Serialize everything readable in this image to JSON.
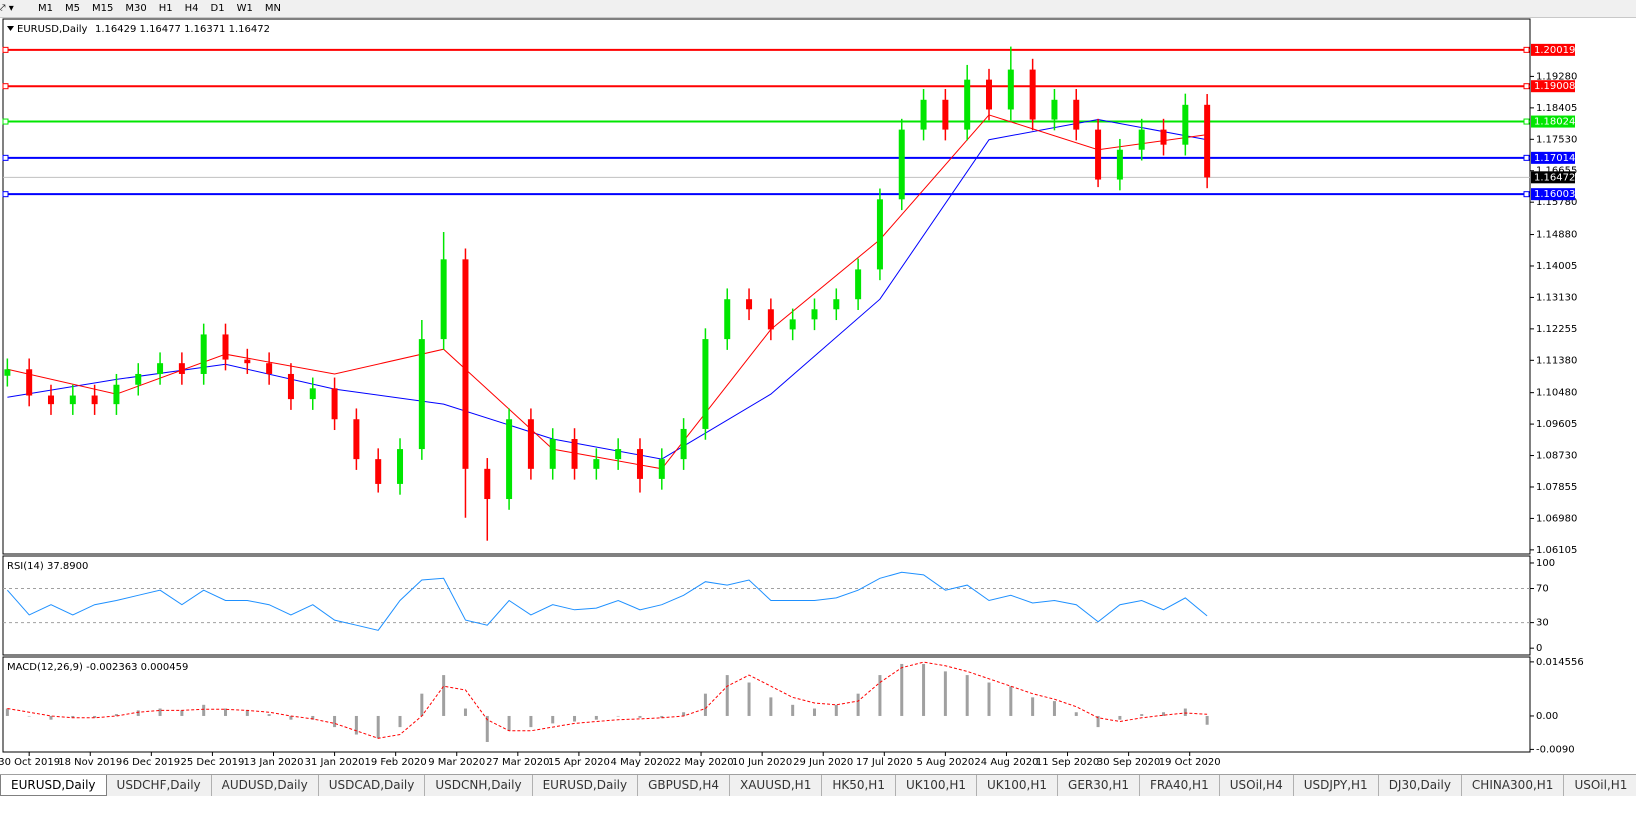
{
  "toolbar": {
    "timeframes": [
      "M1",
      "M5",
      "M15",
      "M30",
      "H1",
      "H4",
      "D1",
      "W1",
      "MN"
    ]
  },
  "chart_data": [
    {
      "type": "candlestick",
      "title": "EURUSD,Daily",
      "subtitle": "1.16429 1.16477 1.16371 1.16472",
      "x": [
        0,
        5,
        10,
        15,
        20,
        25,
        30,
        35,
        40,
        45,
        50,
        55,
        60,
        65,
        70,
        75,
        80,
        85,
        90,
        95,
        100,
        105,
        110,
        115,
        120,
        125,
        130,
        135,
        140,
        145,
        150,
        155,
        160,
        165,
        170,
        175,
        180,
        185,
        190,
        195,
        200,
        205,
        210,
        215,
        220,
        225,
        230,
        235,
        240,
        245,
        250,
        255,
        260,
        265,
        270,
        275
      ],
      "open": [
        1.1095,
        1.1113,
        1.104,
        1.1016,
        1.104,
        1.1016,
        1.107,
        1.11,
        1.113,
        1.11,
        1.121,
        1.114,
        1.113,
        1.11,
        1.103,
        1.106,
        1.0974,
        1.0863,
        1.0794,
        1.0891,
        1.1197,
        1.1419,
        1.0836,
        1.0752,
        1.0974,
        1.0836,
        1.0919,
        1.0836,
        1.0863,
        1.0891,
        1.0808,
        1.0863,
        1.0947,
        1.1197,
        1.1308,
        1.128,
        1.1224,
        1.1252,
        1.128,
        1.1308,
        1.1391,
        1.1586,
        1.178,
        1.1863,
        1.178,
        1.1919,
        1.1836,
        1.1947,
        1.1808,
        1.1863,
        1.178,
        1.1641,
        1.1724,
        1.178,
        1.1738,
        1.1849
      ],
      "high": [
        1.1143,
        1.1143,
        1.107,
        1.107,
        1.107,
        1.11,
        1.113,
        1.116,
        1.116,
        1.124,
        1.124,
        1.117,
        1.116,
        1.113,
        1.109,
        1.109,
        1.1004,
        1.0893,
        1.0921,
        1.125,
        1.1495,
        1.1449,
        1.0866,
        1.1004,
        1.1004,
        1.0949,
        1.0949,
        1.0893,
        1.0921,
        1.0921,
        1.0893,
        1.0977,
        1.1227,
        1.1338,
        1.1338,
        1.131,
        1.1282,
        1.131,
        1.1338,
        1.1421,
        1.1616,
        1.181,
        1.1893,
        1.1893,
        1.196,
        1.1949,
        1.2011,
        1.1977,
        1.1893,
        1.1893,
        1.181,
        1.1754,
        1.181,
        1.181,
        1.188,
        1.1879
      ],
      "low": [
        1.1065,
        1.101,
        1.0986,
        1.0986,
        1.0986,
        1.0986,
        1.104,
        1.107,
        1.107,
        1.107,
        1.111,
        1.11,
        1.107,
        1.1,
        1.1,
        1.0944,
        1.0833,
        1.077,
        1.0764,
        1.0861,
        1.1167,
        1.07,
        1.0636,
        1.0722,
        1.0806,
        1.0806,
        1.0806,
        1.0806,
        1.0833,
        1.077,
        1.0778,
        1.0833,
        1.0917,
        1.1167,
        1.125,
        1.1194,
        1.1194,
        1.1222,
        1.125,
        1.1278,
        1.1361,
        1.1556,
        1.175,
        1.175,
        1.175,
        1.1806,
        1.1806,
        1.1778,
        1.1778,
        1.175,
        1.162,
        1.1611,
        1.1694,
        1.1708,
        1.1708,
        1.1617
      ],
      "close": [
        1.1113,
        1.104,
        1.1016,
        1.104,
        1.1016,
        1.107,
        1.11,
        1.113,
        1.11,
        1.121,
        1.114,
        1.113,
        1.11,
        1.103,
        1.106,
        1.0974,
        1.0863,
        1.0794,
        1.0891,
        1.1197,
        1.1419,
        1.0836,
        1.0752,
        1.0974,
        1.0836,
        1.0919,
        1.0836,
        1.0863,
        1.0891,
        1.0808,
        1.0863,
        1.0947,
        1.1197,
        1.1308,
        1.128,
        1.1224,
        1.1252,
        1.128,
        1.1308,
        1.1391,
        1.1586,
        1.178,
        1.1863,
        1.178,
        1.1919,
        1.1836,
        1.1947,
        1.1808,
        1.1863,
        1.178,
        1.1641,
        1.1724,
        1.178,
        1.1738,
        1.1849,
        1.1647
      ],
      "up_color": "#00e600",
      "down_color": "#ff0000",
      "series": [
        {
          "color": "#0000ff",
          "x": [
            0,
            25,
            50,
            75,
            100,
            125,
            150,
            175,
            200,
            225,
            250,
            275
          ],
          "values": [
            1.1035,
            1.1085,
            1.1127,
            1.1058,
            1.1016,
            1.0919,
            1.0863,
            1.1044,
            1.1308,
            1.1752,
            1.1808,
            1.1752
          ]
        },
        {
          "color": "#ff0000",
          "x": [
            0,
            25,
            50,
            75,
            100,
            125,
            150,
            175,
            200,
            225,
            250,
            275
          ],
          "values": [
            1.1113,
            1.1044,
            1.1155,
            1.11,
            1.1169,
            1.0891,
            1.0836,
            1.1224,
            1.1474,
            1.1821,
            1.1724,
            1.1766
          ]
        }
      ],
      "levels": [
        {
          "value": 1.20019,
          "color": "#ff0000"
        },
        {
          "value": 1.19008,
          "color": "#ff0000"
        },
        {
          "value": 1.18024,
          "color": "#00e600"
        },
        {
          "value": 1.17014,
          "color": "#0000ff"
        },
        {
          "value": 1.16003,
          "color": "#0000ff"
        }
      ],
      "last_price": 1.16472,
      "xlim": [
        -1,
        349
      ],
      "ylim": [
        1.0599,
        1.2085
      ],
      "xticks": [
        {
          "value": 5,
          "label": "30 Oct 2019"
        },
        {
          "value": 19,
          "label": "18 Nov 2019"
        },
        {
          "value": 33,
          "label": "6 Dec 2019"
        },
        {
          "value": 47,
          "label": "25 Dec 2019"
        },
        {
          "value": 61,
          "label": "13 Jan 2020"
        },
        {
          "value": 75,
          "label": "31 Jan 2020"
        },
        {
          "value": 89,
          "label": "19 Feb 2020"
        },
        {
          "value": 103,
          "label": "9 Mar 2020"
        },
        {
          "value": 117,
          "label": "27 Mar 2020"
        },
        {
          "value": 131,
          "label": "15 Apr 2020"
        },
        {
          "value": 145,
          "label": "4 May 2020"
        },
        {
          "value": 159,
          "label": "22 May 2020"
        },
        {
          "value": 173,
          "label": "10 Jun 2020"
        },
        {
          "value": 187,
          "label": "29 Jun 2020"
        },
        {
          "value": 201,
          "label": "17 Jul 2020"
        },
        {
          "value": 215,
          "label": "5 Aug 2020"
        },
        {
          "value": 229,
          "label": "24 Aug 2020"
        },
        {
          "value": 243,
          "label": "11 Sep 2020"
        },
        {
          "value": 257,
          "label": "30 Sep 2020"
        },
        {
          "value": 271,
          "label": "19 Oct 2020"
        }
      ],
      "yticks": [
        {
          "value": 1.1928,
          "label": "1.19280"
        },
        1.18405,
        {
          "value": 1.1753,
          "label": "1.17530"
        },
        1.16655,
        {
          "value": 1.1578,
          "label": "1.15780"
        },
        {
          "value": 1.1488,
          "label": "1.14880"
        },
        1.14005,
        {
          "value": 1.1313,
          "label": "1.13130"
        },
        1.12255,
        {
          "value": 1.1138,
          "label": "1.11380"
        },
        {
          "value": 1.1048,
          "label": "1.10480"
        },
        1.09605,
        {
          "value": 1.0873,
          "label": "1.08730"
        },
        1.07855,
        {
          "value": 1.0698,
          "label": "1.06980"
        },
        1.06105
      ]
    },
    {
      "type": "line",
      "title": "RSI(14) 37.8900",
      "x": [
        0,
        5,
        10,
        15,
        20,
        25,
        30,
        35,
        40,
        45,
        50,
        55,
        60,
        65,
        70,
        75,
        80,
        85,
        90,
        95,
        100,
        105,
        110,
        115,
        120,
        125,
        130,
        135,
        140,
        145,
        150,
        155,
        160,
        165,
        170,
        175,
        180,
        185,
        190,
        195,
        200,
        205,
        210,
        215,
        220,
        225,
        230,
        235,
        240,
        245,
        250,
        255,
        260,
        265,
        270,
        275
      ],
      "values": [
        68,
        39,
        51,
        39,
        51,
        56,
        62,
        68,
        51,
        68,
        56,
        56,
        51,
        39,
        51,
        33,
        27,
        21,
        56,
        80,
        82,
        33,
        27,
        56,
        39,
        51,
        45,
        47,
        56,
        45,
        51,
        62,
        78,
        74,
        80,
        56,
        56,
        56,
        59,
        68,
        82,
        89,
        86,
        68,
        74,
        56,
        62,
        53,
        56,
        51,
        31,
        51,
        56,
        45,
        59,
        37.89
      ],
      "color": "#1e90ff",
      "levels": [
        30,
        70
      ],
      "xlim": [
        -1,
        349
      ],
      "ylim": [
        -8,
        107
      ],
      "yticks": [
        0,
        30,
        70,
        100
      ]
    },
    {
      "type": "macd",
      "title": "MACD(12,26,9) -0.002363 0.000459",
      "x": [
        0,
        5,
        10,
        15,
        20,
        25,
        30,
        35,
        40,
        45,
        50,
        55,
        60,
        65,
        70,
        75,
        80,
        85,
        90,
        95,
        100,
        105,
        110,
        115,
        120,
        125,
        130,
        135,
        140,
        145,
        150,
        155,
        160,
        165,
        170,
        175,
        180,
        185,
        190,
        195,
        200,
        205,
        210,
        215,
        220,
        225,
        230,
        235,
        240,
        245,
        250,
        255,
        260,
        265,
        270,
        275
      ],
      "histogram": [
        0.002,
        0,
        -0.001,
        -0.0005,
        -0.0005,
        0.0005,
        0.0015,
        0.002,
        0.0015,
        0.003,
        0.002,
        0.0015,
        0.0005,
        -0.001,
        -0.001,
        -0.003,
        -0.005,
        -0.006,
        -0.003,
        0.006,
        0.011,
        0.002,
        -0.007,
        -0.004,
        -0.003,
        -0.002,
        -0.0015,
        -0.001,
        0,
        -0.0005,
        -0.0005,
        0.001,
        0.006,
        0.011,
        0.009,
        0.005,
        0.003,
        0.002,
        0.003,
        0.006,
        0.011,
        0.014,
        0.014,
        0.012,
        0.011,
        0.009,
        0.008,
        0.005,
        0.004,
        0.001,
        -0.003,
        -0.001,
        0.0005,
        0.001,
        0.002,
        -0.002363
      ],
      "signal": [
        0.002,
        0.001,
        0,
        -0.0005,
        -0.0005,
        0,
        0.001,
        0.0015,
        0.0015,
        0.0018,
        0.0018,
        0.0015,
        0.001,
        0,
        -0.0008,
        -0.002,
        -0.004,
        -0.006,
        -0.005,
        0,
        0.008,
        0.007,
        -0.001,
        -0.004,
        -0.004,
        -0.003,
        -0.002,
        -0.0015,
        -0.001,
        -0.0008,
        -0.0005,
        0,
        0.002,
        0.008,
        0.011,
        0.008,
        0.005,
        0.0035,
        0.003,
        0.004,
        0.009,
        0.013,
        0.0145,
        0.0135,
        0.012,
        0.01,
        0.008,
        0.006,
        0.0045,
        0.0025,
        -0.0005,
        -0.0015,
        -0.0005,
        0.0002,
        0.0008,
        0.000459
      ],
      "hist_color": "#a0a0a0",
      "signal_color": "#ff0000",
      "xlim": [
        -1,
        349
      ],
      "ylim": [
        -0.0097,
        0.0156
      ],
      "yticks": [
        {
          "value": -0.009,
          "label": "-0.0090"
        },
        {
          "value": 0,
          "label": "0.00"
        },
        0.014556
      ]
    }
  ],
  "tabs": [
    "EURUSD,Daily",
    "USDCHF,Daily",
    "AUDUSD,Daily",
    "USDCAD,Daily",
    "USDCNH,Daily",
    "EURUSD,Daily",
    "GBPUSD,H4",
    "XAUUSD,H1",
    "HK50,H1",
    "UK100,H1",
    "UK100,H1",
    "GER30,H1",
    "FRA40,H1",
    "USOil,H4",
    "USDJPY,H1",
    "DJ30,Daily",
    "CHINA300,H1",
    "USOil,H1"
  ]
}
